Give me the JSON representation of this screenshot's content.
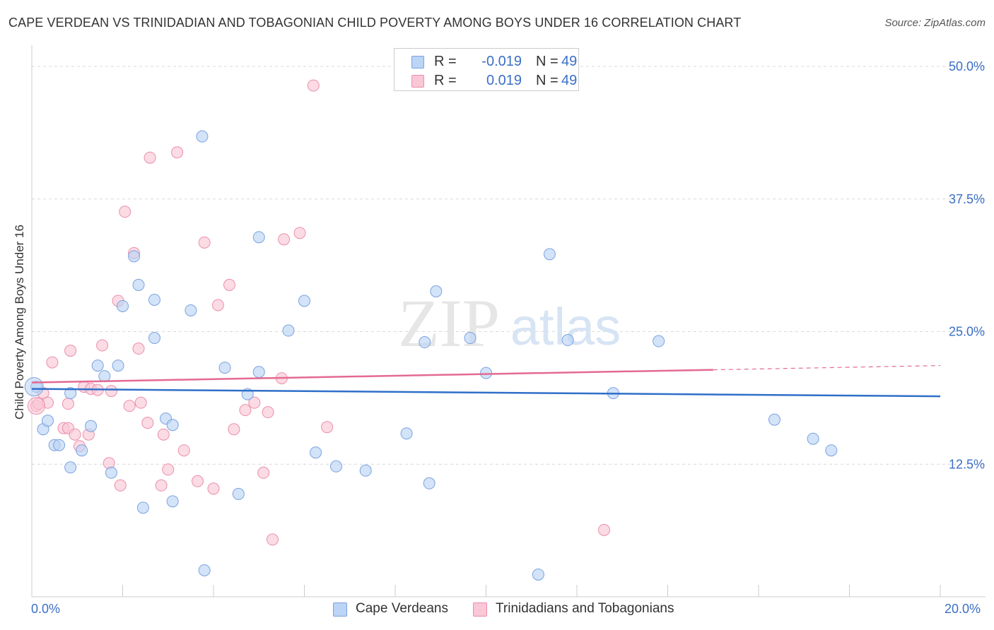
{
  "title": "CAPE VERDEAN VS TRINIDADIAN AND TOBAGONIAN CHILD POVERTY AMONG BOYS UNDER 16 CORRELATION CHART",
  "source": "Source: ZipAtlas.com",
  "watermark": {
    "zip": "ZIP",
    "atlas": "atlas"
  },
  "legend": {
    "series1": {
      "r_label": "R =",
      "r_value": "-0.019",
      "n_label": "N =",
      "n_value": "49"
    },
    "series2": {
      "r_label": "R =",
      "r_value": "0.019",
      "n_label": "N =",
      "n_value": "49"
    }
  },
  "colors": {
    "blue_fill": "#bcd4f5",
    "blue_stroke": "#7aa3e0",
    "blue_line": "#2f6fc9",
    "pink_fill": "#f9c7d6",
    "pink_stroke": "#ec8fab",
    "pink_line": "#e36a93",
    "axis_text": "#3b6fc6",
    "grid": "#d9d9d9"
  },
  "chart_data": {
    "type": "scatter",
    "title": "CAPE VERDEAN VS TRINIDADIAN AND TOBAGONIAN CHILD POVERTY AMONG BOYS UNDER 16 CORRELATION CHART",
    "xlabel": "",
    "ylabel": "Child Poverty Among Boys Under 16",
    "xlim": [
      0,
      20
    ],
    "ylim": [
      0,
      52
    ],
    "x_tick_labels": [
      "0.0%",
      "20.0%"
    ],
    "y_ticks": [
      {
        "value": 12.5,
        "label": "12.5%"
      },
      {
        "value": 25.0,
        "label": "25.0%"
      },
      {
        "value": 37.5,
        "label": "37.5%"
      },
      {
        "value": 50.0,
        "label": "50.0%"
      }
    ],
    "series": [
      {
        "name": "Cape Verdeans",
        "r": -0.019,
        "n": 49,
        "trend": {
          "x0": 0,
          "y0": 19.6,
          "x1": 20,
          "y1": 18.9
        },
        "points": [
          [
            0.1,
            19.8
          ],
          [
            0.25,
            15.8
          ],
          [
            0.35,
            16.6
          ],
          [
            0.5,
            14.3
          ],
          [
            0.6,
            14.3
          ],
          [
            0.85,
            12.2
          ],
          [
            0.85,
            19.2
          ],
          [
            1.1,
            13.8
          ],
          [
            1.3,
            16.1
          ],
          [
            1.45,
            21.8
          ],
          [
            1.6,
            20.8
          ],
          [
            1.75,
            11.7
          ],
          [
            1.9,
            21.8
          ],
          [
            2.0,
            27.4
          ],
          [
            2.25,
            32.1
          ],
          [
            2.35,
            29.4
          ],
          [
            2.45,
            8.4
          ],
          [
            2.7,
            24.4
          ],
          [
            2.7,
            28.0
          ],
          [
            2.95,
            16.8
          ],
          [
            3.1,
            9.0
          ],
          [
            3.1,
            16.2
          ],
          [
            3.5,
            27.0
          ],
          [
            3.75,
            43.4
          ],
          [
            3.8,
            2.5
          ],
          [
            4.25,
            21.6
          ],
          [
            4.55,
            9.7
          ],
          [
            4.75,
            19.1
          ],
          [
            5.0,
            33.9
          ],
          [
            5.0,
            21.2
          ],
          [
            5.65,
            25.1
          ],
          [
            6.0,
            27.9
          ],
          [
            6.25,
            13.6
          ],
          [
            6.7,
            12.3
          ],
          [
            7.35,
            11.9
          ],
          [
            8.25,
            15.4
          ],
          [
            8.65,
            24.0
          ],
          [
            8.75,
            10.7
          ],
          [
            8.9,
            28.8
          ],
          [
            9.65,
            24.4
          ],
          [
            10.0,
            21.1
          ],
          [
            11.15,
            2.1
          ],
          [
            11.4,
            32.3
          ],
          [
            11.8,
            24.2
          ],
          [
            12.8,
            19.2
          ],
          [
            13.8,
            24.1
          ],
          [
            16.35,
            16.7
          ],
          [
            17.2,
            14.9
          ],
          [
            17.6,
            13.8
          ]
        ]
      },
      {
        "name": "Trinidadians and Tobagonians",
        "r": 0.019,
        "n": 49,
        "trend": {
          "x0": 0,
          "y0": 20.2,
          "x1": 15,
          "y1": 21.4,
          "dash_x1": 20,
          "dash_y1": 21.8
        },
        "points": [
          [
            0.1,
            18.0
          ],
          [
            0.25,
            19.2
          ],
          [
            0.35,
            18.3
          ],
          [
            0.45,
            22.1
          ],
          [
            0.7,
            15.9
          ],
          [
            0.8,
            15.9
          ],
          [
            0.8,
            18.2
          ],
          [
            0.85,
            23.2
          ],
          [
            0.95,
            15.3
          ],
          [
            1.05,
            14.2
          ],
          [
            1.15,
            19.8
          ],
          [
            1.25,
            15.3
          ],
          [
            1.3,
            19.6
          ],
          [
            1.45,
            19.5
          ],
          [
            1.55,
            23.7
          ],
          [
            1.7,
            12.6
          ],
          [
            1.75,
            19.4
          ],
          [
            1.9,
            27.9
          ],
          [
            1.95,
            10.5
          ],
          [
            2.05,
            36.3
          ],
          [
            2.15,
            18.0
          ],
          [
            2.25,
            32.4
          ],
          [
            2.35,
            23.4
          ],
          [
            2.4,
            18.3
          ],
          [
            2.55,
            16.4
          ],
          [
            2.6,
            41.4
          ],
          [
            2.85,
            10.5
          ],
          [
            2.9,
            15.3
          ],
          [
            3.0,
            12.0
          ],
          [
            3.2,
            41.9
          ],
          [
            3.35,
            13.8
          ],
          [
            3.65,
            10.9
          ],
          [
            3.8,
            33.4
          ],
          [
            4.0,
            10.2
          ],
          [
            4.1,
            27.5
          ],
          [
            4.35,
            29.4
          ],
          [
            4.45,
            15.8
          ],
          [
            4.7,
            17.6
          ],
          [
            4.9,
            18.3
          ],
          [
            5.1,
            11.7
          ],
          [
            5.2,
            17.4
          ],
          [
            5.3,
            5.4
          ],
          [
            5.5,
            20.6
          ],
          [
            5.55,
            33.7
          ],
          [
            5.9,
            34.3
          ],
          [
            6.2,
            48.2
          ],
          [
            6.5,
            16.0
          ],
          [
            12.6,
            6.3
          ],
          [
            0.15,
            18.2
          ]
        ]
      }
    ]
  },
  "bottom_legend": [
    "Cape Verdeans",
    "Trinidadians and Tobagonians"
  ]
}
